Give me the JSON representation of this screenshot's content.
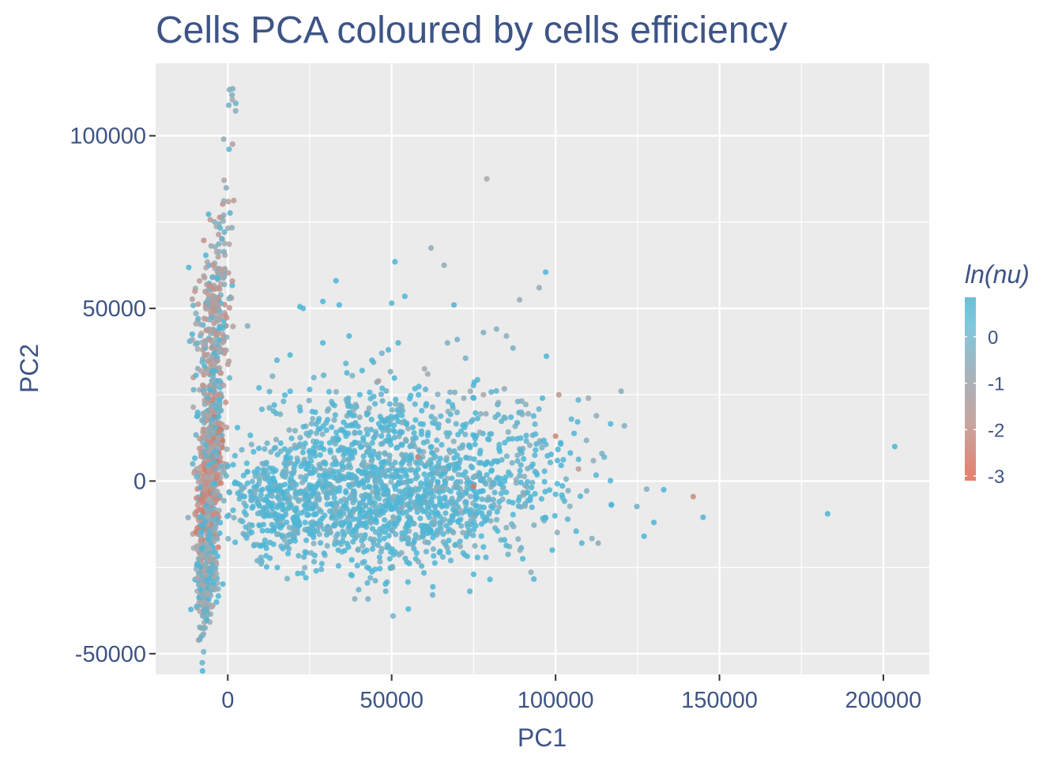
{
  "chart_data": {
    "type": "scatter",
    "title": "Cells PCA coloured by cells efficiency",
    "xlabel": "PC1",
    "ylabel": "PC2",
    "xlim": [
      -22000,
      214000
    ],
    "ylim": [
      -56000,
      121000
    ],
    "x_ticks": [
      0,
      50000,
      100000,
      150000,
      200000
    ],
    "x_tick_labels": [
      "0",
      "50000",
      "100000",
      "150000",
      "200000"
    ],
    "y_ticks": [
      -50000,
      0,
      50000,
      100000
    ],
    "y_tick_labels": [
      "-50000",
      "0",
      "50000",
      "100000"
    ],
    "grid": true,
    "legend": {
      "title": "ln(nu)",
      "placement": "right",
      "ticks": [
        0,
        -1,
        -2,
        -3
      ],
      "tick_labels": [
        "0",
        "-1",
        "-2",
        "-3"
      ],
      "range": [
        -3.1,
        0.85
      ],
      "colors": [
        "#e57f6c",
        "#c8a49e",
        "#abb1b9",
        "#7fc8de",
        "#6dbfd6"
      ]
    },
    "marker_colors": {
      "cyan": "#4db6d6",
      "grey": "#a8a9ad",
      "salmon": "#c88f86",
      "red": "#d9705a"
    },
    "points": [
      {
        "x": 203500,
        "y": 10000,
        "c": 0.4
      },
      {
        "x": 183000,
        "y": -9500,
        "c": 0.3
      },
      {
        "x": 145000,
        "y": -10500,
        "c": 0.2
      },
      {
        "x": 142000,
        "y": -4500,
        "c": -2.2
      },
      {
        "x": 133000,
        "y": -2500,
        "c": 0.3
      },
      {
        "x": 130000,
        "y": -12000,
        "c": 0.2
      },
      {
        "x": 127000,
        "y": -16000,
        "c": 0.3
      },
      {
        "x": 121000,
        "y": 16000,
        "c": -0.5
      },
      {
        "x": 120000,
        "y": 26000,
        "c": -0.6
      },
      {
        "x": 110000,
        "y": 24000,
        "c": -0.8
      },
      {
        "x": 101000,
        "y": 25000,
        "c": -1.8
      },
      {
        "x": 100000,
        "y": 13000,
        "c": -2.4
      },
      {
        "x": 97000,
        "y": 60500,
        "c": 0.0
      },
      {
        "x": 95000,
        "y": 56000,
        "c": -0.7
      },
      {
        "x": 89000,
        "y": 52500,
        "c": -0.7
      },
      {
        "x": 79000,
        "y": 87500,
        "c": -0.9
      },
      {
        "x": 82000,
        "y": 44000,
        "c": -0.6
      },
      {
        "x": 85000,
        "y": 42000,
        "c": -0.6
      },
      {
        "x": 87000,
        "y": 38500,
        "c": -0.4
      },
      {
        "x": 78000,
        "y": 43000,
        "c": -0.5
      },
      {
        "x": 66000,
        "y": 62500,
        "c": -0.6
      },
      {
        "x": 62000,
        "y": 67500,
        "c": -0.7
      },
      {
        "x": 51000,
        "y": 63500,
        "c": 0.2
      },
      {
        "x": 54000,
        "y": 53500,
        "c": 0.2
      },
      {
        "x": 50000,
        "y": 51500,
        "c": 0.1
      },
      {
        "x": 33000,
        "y": 58000,
        "c": 0.3
      },
      {
        "x": 29000,
        "y": 52000,
        "c": 0.1
      },
      {
        "x": 34000,
        "y": 51000,
        "c": 0.2
      },
      {
        "x": 22000,
        "y": 50500,
        "c": 0.1
      },
      {
        "x": 23000,
        "y": 50000,
        "c": 0.0
      },
      {
        "x": 69000,
        "y": 51000,
        "c": 0.1
      },
      {
        "x": 70000,
        "y": 41000,
        "c": -0.4
      },
      {
        "x": 67000,
        "y": 40000,
        "c": -0.5
      },
      {
        "x": 52000,
        "y": 40000,
        "c": 0.2
      },
      {
        "x": 49000,
        "y": 38000,
        "c": 0.1
      },
      {
        "x": 37000,
        "y": 42000,
        "c": 0.1
      },
      {
        "x": 29000,
        "y": 40000,
        "c": 0.2
      },
      {
        "x": 19000,
        "y": 36500,
        "c": 0.1
      },
      {
        "x": 15000,
        "y": 35000,
        "c": 0.1
      },
      {
        "x": 41000,
        "y": 32000,
        "c": 0.2
      },
      {
        "x": 44000,
        "y": 35000,
        "c": 0.2
      },
      {
        "x": 47000,
        "y": 37000,
        "c": -0.3
      },
      {
        "x": 46000,
        "y": 29000,
        "c": -1.5
      },
      {
        "x": 61000,
        "y": 31000,
        "c": -0.8
      },
      {
        "x": 60000,
        "y": 32500,
        "c": -0.9
      },
      {
        "x": 38000,
        "y": 30500,
        "c": -0.5
      },
      {
        "x": 74000,
        "y": 26000,
        "c": -0.8
      },
      {
        "x": 72000,
        "y": 24000,
        "c": -0.6
      },
      {
        "x": 78000,
        "y": 25000,
        "c": -1.1
      },
      {
        "x": 96000,
        "y": 24000,
        "c": 0.1
      },
      {
        "x": 107000,
        "y": 3500,
        "c": -1.5
      },
      {
        "x": 75000,
        "y": -1500,
        "c": -2.8
      },
      {
        "x": 58000,
        "y": 7000,
        "c": -2.4
      },
      {
        "x": 99000,
        "y": -20000,
        "c": 0.2
      },
      {
        "x": 90000,
        "y": -22500,
        "c": 0.2
      },
      {
        "x": 75000,
        "y": -27000,
        "c": 0.1
      },
      {
        "x": 80000,
        "y": -28500,
        "c": 0.2
      },
      {
        "x": 108000,
        "y": -18000,
        "c": 0.2
      },
      {
        "x": 113000,
        "y": -18000,
        "c": -0.6
      }
    ],
    "clusters": [
      {
        "cx": -5500,
        "cy": 2000,
        "sx": 1300,
        "sy": 16000,
        "n": 650,
        "cmin": -2.9,
        "cmax": 0.1,
        "shape": "arm"
      },
      {
        "cx": -4500,
        "cy": 45000,
        "sx": 2000,
        "sy": 14000,
        "n": 260,
        "cmin": -2.0,
        "cmax": 0.3,
        "shape": "arm"
      },
      {
        "cx": -6500,
        "cy": -28000,
        "sx": 1200,
        "sy": 8000,
        "n": 170,
        "cmin": -1.2,
        "cmax": 0.4,
        "shape": "arm"
      },
      {
        "cx": 45000,
        "cy": -5000,
        "sx": 18000,
        "sy": 10000,
        "n": 1100,
        "cmin": -0.6,
        "cmax": 0.6,
        "shape": "blob"
      },
      {
        "cx": 80000,
        "cy": 2000,
        "sx": 15000,
        "sy": 11000,
        "n": 320,
        "cmin": -0.7,
        "cmax": 0.6,
        "shape": "blob"
      },
      {
        "cx": 15000,
        "cy": -6000,
        "sx": 7000,
        "sy": 8000,
        "n": 260,
        "cmin": -0.5,
        "cmax": 0.5,
        "shape": "blob"
      },
      {
        "cx": 45000,
        "cy": 18000,
        "sx": 20000,
        "sy": 6000,
        "n": 220,
        "cmin": -0.6,
        "cmax": 0.5,
        "shape": "blob"
      }
    ],
    "spine": {
      "x0": -8000,
      "y0": -48000,
      "x1": 1500,
      "y1": 113000,
      "n": 80
    }
  }
}
